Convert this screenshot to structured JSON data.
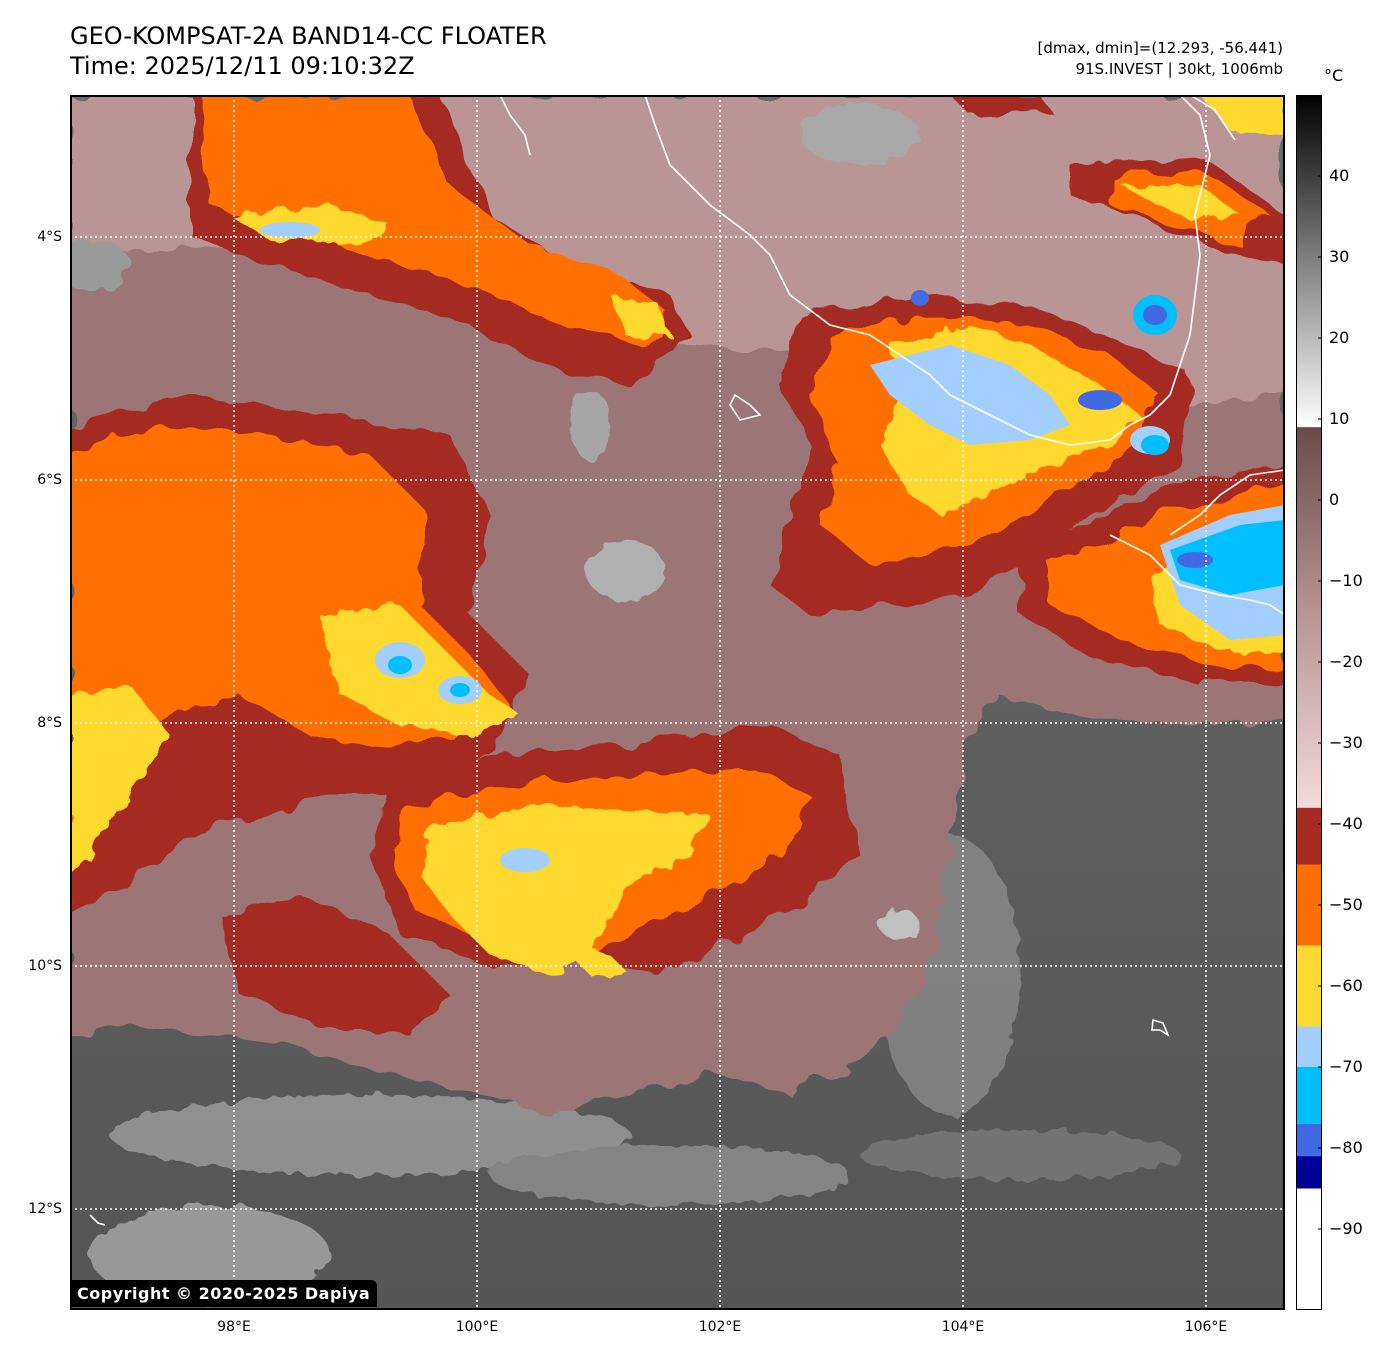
{
  "header": {
    "title_line1": "GEO-KOMPSAT-2A BAND14-CC FLOATER",
    "title_line2": "Time: 2025/12/11 09:10:32Z",
    "info_line1": "[dmax, dmin]=(12.293, -56.441)",
    "info_line2": "91S.INVEST | 30kt, 1006mb"
  },
  "copyright": "Copyright © 2020-2025 Dapiya",
  "map": {
    "lat_labels": [
      "4°S",
      "6°S",
      "8°S",
      "10°S",
      "12°S"
    ],
    "lat_values": [
      -4,
      -6,
      -8,
      -10,
      -12
    ],
    "lon_labels": [
      "98°E",
      "100°E",
      "102°E",
      "104°E",
      "106°E"
    ],
    "lon_values": [
      98,
      100,
      102,
      104,
      106
    ],
    "extent": {
      "lon_min": 96.65,
      "lon_max": 106.65,
      "lat_max": -2.83,
      "lat_min": -12.83
    },
    "gridline_style": "dotted white"
  },
  "colorbar": {
    "unit": "°C",
    "tick_labels": [
      "40",
      "30",
      "20",
      "10",
      "0",
      "−10",
      "−20",
      "−30",
      "−40",
      "−50",
      "−60",
      "−70",
      "−80",
      "−90"
    ],
    "tick_values": [
      40,
      30,
      20,
      10,
      0,
      -10,
      -20,
      -30,
      -40,
      -50,
      -60,
      -70,
      -80,
      -90
    ],
    "range": [
      -100,
      50
    ],
    "bands": [
      {
        "from": -100,
        "to": -85,
        "color": "#ffffff"
      },
      {
        "from": -85,
        "to": -81,
        "color": "#000099"
      },
      {
        "from": -81,
        "to": -77,
        "color": "#4169e1"
      },
      {
        "from": -77,
        "to": -70,
        "color": "#00bfff"
      },
      {
        "from": -70,
        "to": -65,
        "color": "#a3cfff"
      },
      {
        "from": -65,
        "to": -55,
        "color": "#ffd92f"
      },
      {
        "from": -55,
        "to": -45,
        "color": "#ff6f00"
      },
      {
        "from": -45,
        "to": -38,
        "color": "#a52a22"
      }
    ],
    "gradients": [
      {
        "from": -38,
        "to": 9,
        "stops": [
          "#f4dada",
          "#ba9696",
          "#6b4a4a"
        ]
      },
      {
        "from": 9,
        "to": 50,
        "stops": [
          "#ffffff",
          "#808080",
          "#000000"
        ]
      }
    ]
  },
  "colors": {
    "ocean": "#5a5a5a",
    "warm_cloud": "#9c7676",
    "cold_cloud_red": "#a52a22",
    "cold_cloud_orange": "#ff6f00",
    "cold_cloud_yellow": "#ffd92f",
    "cold_cloud_lightblue": "#a3cfff",
    "cold_cloud_blue": "#00bfff"
  }
}
